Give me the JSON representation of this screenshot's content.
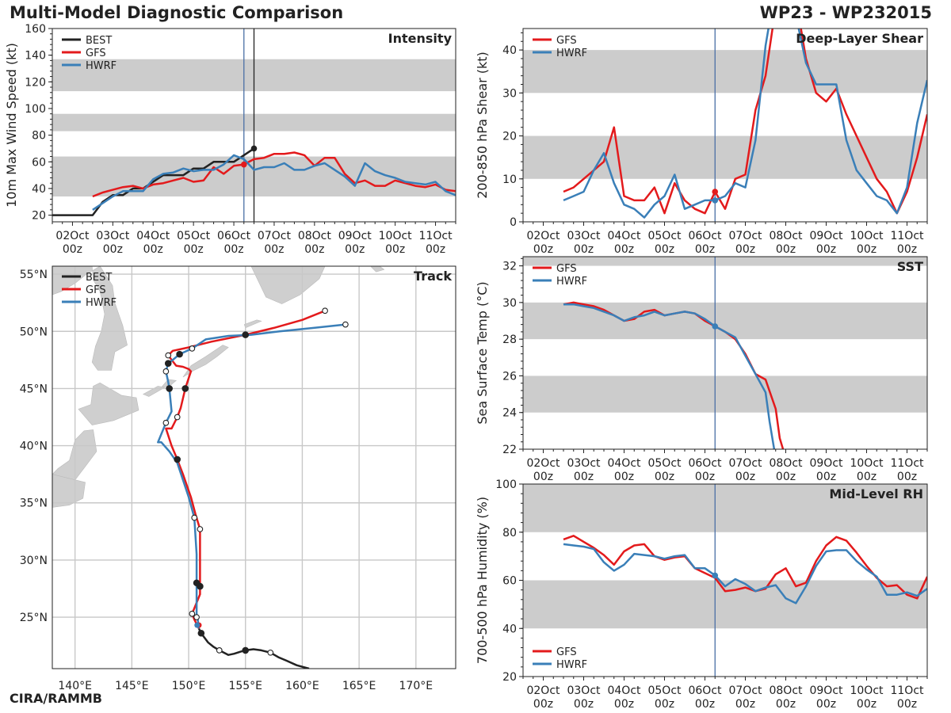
{
  "header": {
    "title": "Multi-Model Diagnostic Comparison",
    "storm": "WP23 - WP232015"
  },
  "footer": {
    "credit": "CIRA/RAMMB"
  },
  "colors": {
    "best": "#222222",
    "gfs": "#e31a1c",
    "hwrf": "#3a7fb8",
    "band": "#cccccc",
    "grid": "#c8c8c8",
    "land": "#cfcfcf"
  },
  "time_axis": {
    "labels": [
      "02Oct\n00z",
      "03Oct\n00z",
      "04Oct\n00z",
      "05Oct\n00z",
      "06Oct\n00z",
      "07Oct\n00z",
      "08Oct\n00z",
      "09Oct\n00z",
      "10Oct\n00z",
      "11Oct\n00z"
    ],
    "range_days": [
      1.5,
      11.5
    ],
    "current_day": 6.25
  },
  "chart_data": [
    {
      "id": "intensity",
      "type": "line",
      "title": "Intensity",
      "ylabel": "10m Max Wind Speed (kt)",
      "ylim": [
        15,
        160
      ],
      "yticks": [
        20,
        40,
        60,
        80,
        100,
        120,
        140,
        160
      ],
      "bands": [
        [
          34,
          64
        ],
        [
          83,
          96
        ],
        [
          113,
          137
        ]
      ],
      "vlines": [
        6.25,
        6.5
      ],
      "current_series": "gfs",
      "legend": [
        "BEST",
        "GFS",
        "HWRF"
      ],
      "series": [
        {
          "name": "BEST",
          "key": "best",
          "x": [
            1.5,
            1.75,
            2.0,
            2.25,
            2.5,
            2.75,
            3.0,
            3.25,
            3.5,
            3.75,
            4.0,
            4.25,
            4.5,
            4.75,
            5.0,
            5.25,
            5.5,
            5.75,
            6.0,
            6.25,
            6.5
          ],
          "y": [
            20,
            20,
            20,
            20,
            20,
            30,
            35,
            35,
            40,
            40,
            45,
            50,
            50,
            50,
            55,
            55,
            60,
            60,
            60,
            65,
            70
          ]
        },
        {
          "name": "GFS",
          "key": "gfs",
          "x": [
            2.5,
            2.75,
            3.0,
            3.25,
            3.5,
            3.75,
            4.0,
            4.25,
            4.5,
            4.75,
            5.0,
            5.25,
            5.5,
            5.75,
            6.0,
            6.25,
            6.5,
            6.75,
            7.0,
            7.25,
            7.5,
            7.75,
            8.0,
            8.25,
            8.5,
            8.75,
            9.0,
            9.25,
            9.5,
            9.75,
            10.0,
            10.25,
            10.5,
            10.75,
            11.0,
            11.25,
            11.5
          ],
          "y": [
            34,
            37,
            39,
            41,
            42,
            40,
            43,
            44,
            46,
            48,
            45,
            46,
            56,
            51,
            57,
            58,
            62,
            63,
            66,
            66,
            67,
            65,
            57,
            63,
            63,
            51,
            44,
            46,
            42,
            42,
            46,
            44,
            42,
            41,
            43,
            39,
            38
          ]
        },
        {
          "name": "HWRF",
          "key": "hwrf",
          "x": [
            2.5,
            2.75,
            3.0,
            3.25,
            3.5,
            3.75,
            4.0,
            4.25,
            4.5,
            4.75,
            5.0,
            5.25,
            5.5,
            5.75,
            6.0,
            6.25,
            6.5,
            6.75,
            7.0,
            7.25,
            7.5,
            7.75,
            8.0,
            8.25,
            8.5,
            8.75,
            9.0,
            9.25,
            9.5,
            9.75,
            10.0,
            10.25,
            10.5,
            10.75,
            11.0,
            11.25,
            11.5
          ],
          "y": [
            24,
            29,
            34,
            38,
            38,
            38,
            47,
            51,
            52,
            55,
            53,
            54,
            54,
            58,
            65,
            62,
            54,
            56,
            56,
            59,
            54,
            54,
            57,
            59,
            54,
            49,
            42,
            59,
            53,
            50,
            48,
            45,
            44,
            43,
            45,
            38,
            35
          ]
        }
      ]
    },
    {
      "id": "shear",
      "type": "line",
      "title": "Deep-Layer Shear",
      "ylabel": "200-850 hPa Shear (kt)",
      "ylim": [
        0,
        45
      ],
      "yticks": [
        0,
        10,
        20,
        30,
        40
      ],
      "bands": [
        [
          10,
          20
        ],
        [
          30,
          40
        ]
      ],
      "vlines": [
        6.25
      ],
      "current_series": "both",
      "legend": [
        "GFS",
        "HWRF"
      ],
      "series": [
        {
          "name": "GFS",
          "key": "gfs",
          "x": [
            2.5,
            2.75,
            3.0,
            3.25,
            3.5,
            3.75,
            4.0,
            4.25,
            4.5,
            4.75,
            5.0,
            5.25,
            5.5,
            5.75,
            6.0,
            6.25,
            6.5,
            6.75,
            7.0,
            7.25,
            7.5,
            7.75,
            8.0,
            8.25,
            8.5,
            8.75,
            9.0,
            9.25,
            9.5,
            9.75,
            10.0,
            10.25,
            10.5,
            10.75,
            11.0,
            11.25,
            11.5
          ],
          "y": [
            7,
            8,
            10,
            12,
            14,
            22,
            6,
            5,
            5,
            8,
            2,
            9,
            5,
            3,
            2,
            7,
            3,
            10,
            11,
            26,
            34,
            50,
            55,
            52,
            38,
            30,
            28,
            31,
            25,
            20,
            15,
            10,
            7,
            2,
            7,
            15,
            25
          ]
        },
        {
          "name": "HWRF",
          "key": "hwrf",
          "x": [
            2.5,
            2.75,
            3.0,
            3.25,
            3.5,
            3.75,
            4.0,
            4.25,
            4.5,
            4.75,
            5.0,
            5.25,
            5.5,
            5.75,
            6.0,
            6.25,
            6.5,
            6.75,
            7.0,
            7.25,
            7.5,
            7.75,
            8.0,
            8.25,
            8.5,
            8.75,
            9.0,
            9.25,
            9.5,
            9.75,
            10.0,
            10.25,
            10.5,
            10.75,
            11.0,
            11.25,
            11.5
          ],
          "y": [
            5,
            6,
            7,
            12,
            16,
            9,
            4,
            3,
            1,
            4,
            6,
            11,
            3,
            4,
            5,
            5,
            6,
            9,
            8,
            19,
            41,
            55,
            52,
            48,
            37,
            32,
            32,
            32,
            19,
            12,
            9,
            6,
            5,
            2,
            8,
            23,
            33
          ]
        }
      ]
    },
    {
      "id": "sst",
      "type": "line",
      "title": "SST",
      "ylabel": "Sea Surface Temp (°C)",
      "ylim": [
        22,
        32.5
      ],
      "yticks": [
        22,
        24,
        26,
        28,
        30,
        32
      ],
      "bands": [
        [
          24,
          26
        ],
        [
          28,
          30
        ],
        [
          32,
          34
        ]
      ],
      "vlines": [
        6.25
      ],
      "current_series": "hwrf",
      "legend": [
        "GFS",
        "HWRF"
      ],
      "series": [
        {
          "name": "GFS",
          "key": "gfs",
          "x": [
            2.5,
            2.75,
            3.0,
            3.25,
            3.5,
            3.75,
            4.0,
            4.25,
            4.5,
            4.75,
            5.0,
            5.25,
            5.5,
            5.75,
            6.0,
            6.25,
            6.5,
            6.75,
            7.0,
            7.25,
            7.5,
            7.75,
            7.85,
            8.0
          ],
          "y": [
            29.9,
            30.0,
            29.9,
            29.8,
            29.6,
            29.3,
            29.0,
            29.1,
            29.5,
            29.6,
            29.3,
            29.4,
            29.5,
            29.4,
            29.0,
            28.7,
            28.4,
            28.0,
            27.2,
            26.1,
            25.8,
            24.2,
            22.6,
            21.5
          ]
        },
        {
          "name": "HWRF",
          "key": "hwrf",
          "x": [
            2.5,
            2.75,
            3.0,
            3.25,
            3.5,
            3.75,
            4.0,
            4.25,
            4.5,
            4.75,
            5.0,
            5.25,
            5.5,
            5.75,
            6.0,
            6.25,
            6.5,
            6.75,
            7.0,
            7.25,
            7.5,
            7.6,
            7.75
          ],
          "y": [
            29.9,
            29.9,
            29.8,
            29.7,
            29.5,
            29.3,
            29.0,
            29.2,
            29.3,
            29.5,
            29.3,
            29.4,
            29.5,
            29.4,
            29.1,
            28.7,
            28.4,
            28.1,
            27.1,
            26.1,
            25.1,
            23.5,
            21.5
          ]
        }
      ]
    },
    {
      "id": "rh",
      "type": "line",
      "title": "Mid-Level RH",
      "ylabel": "700-500 hPa Humidity (%)",
      "ylim": [
        20,
        100
      ],
      "yticks": [
        20,
        40,
        60,
        80,
        100
      ],
      "bands": [
        [
          40,
          60
        ],
        [
          80,
          100
        ]
      ],
      "vlines": [
        6.25
      ],
      "current_series": "hwrf",
      "legend": [
        "GFS",
        "HWRF"
      ],
      "legend_pos": "bottom-left",
      "series": [
        {
          "name": "GFS",
          "key": "gfs",
          "x": [
            2.5,
            2.75,
            3.0,
            3.25,
            3.5,
            3.75,
            4.0,
            4.25,
            4.5,
            4.75,
            5.0,
            5.25,
            5.5,
            5.75,
            6.0,
            6.25,
            6.5,
            6.75,
            7.0,
            7.25,
            7.5,
            7.75,
            8.0,
            8.25,
            8.5,
            8.75,
            9.0,
            9.25,
            9.5,
            9.75,
            10.0,
            10.25,
            10.5,
            10.75,
            11.0,
            11.25,
            11.5
          ],
          "y": [
            77,
            78.5,
            76,
            73.5,
            70.5,
            66.5,
            72,
            74.5,
            75,
            70,
            68.5,
            69.5,
            70,
            65,
            63,
            61,
            55.5,
            56,
            57,
            55.5,
            56.5,
            62.5,
            65,
            57.5,
            59,
            68,
            74.5,
            78,
            76.5,
            71.5,
            66,
            61,
            57.5,
            58,
            54,
            52.5,
            61.5
          ]
        },
        {
          "name": "HWRF",
          "key": "hwrf",
          "x": [
            2.5,
            2.75,
            3.0,
            3.25,
            3.5,
            3.75,
            4.0,
            4.25,
            4.5,
            4.75,
            5.0,
            5.25,
            5.5,
            5.75,
            6.0,
            6.25,
            6.5,
            6.75,
            7.0,
            7.25,
            7.5,
            7.75,
            8.0,
            8.25,
            8.5,
            8.75,
            9.0,
            9.25,
            9.5,
            9.75,
            10.0,
            10.25,
            10.5,
            10.75,
            11.0,
            11.25,
            11.5
          ],
          "y": [
            75,
            74.5,
            74,
            73,
            67.5,
            64,
            66.5,
            71,
            70.5,
            70,
            69,
            70,
            70.5,
            65,
            65,
            62,
            57.5,
            60.5,
            58.5,
            55.5,
            57,
            58,
            52.5,
            50.5,
            57.5,
            66,
            72,
            72.5,
            72.5,
            68,
            64.5,
            61.5,
            54,
            54,
            55,
            53.5,
            56.5
          ]
        }
      ]
    },
    {
      "id": "track",
      "type": "scatter",
      "title": "Track",
      "xlabel": "",
      "ylabel": "",
      "lon_range": [
        138,
        173.5
      ],
      "lat_range": [
        20.5,
        55.7
      ],
      "xticks": [
        140,
        145,
        150,
        155,
        160,
        165,
        170
      ],
      "xtick_labels": [
        "140°E",
        "145°E",
        "150°E",
        "155°E",
        "160°E",
        "165°E",
        "170°E"
      ],
      "yticks": [
        25,
        30,
        35,
        40,
        45,
        50,
        55
      ],
      "ytick_labels": [
        "25°N",
        "30°N",
        "35°N",
        "40°N",
        "45°N",
        "50°N",
        "55°N"
      ],
      "legend": [
        "BEST",
        "GFS",
        "HWRF"
      ],
      "series": [
        {
          "name": "BEST",
          "key": "best",
          "lon": [
            160.6,
            159.5,
            158.6,
            157.9,
            157.2,
            156.4,
            155.7,
            155.0,
            154.6,
            154.0,
            153.5,
            152.7,
            152.2,
            151.7,
            151.4,
            151.1,
            150.9
          ],
          "lat": [
            20.5,
            20.8,
            21.2,
            21.5,
            21.9,
            22.1,
            22.2,
            22.1,
            22.0,
            21.8,
            21.7,
            22.1,
            22.4,
            22.8,
            23.2,
            23.6,
            24.0
          ],
          "filled_idx": [
            7,
            15
          ],
          "open_idx": [
            4,
            11
          ]
        },
        {
          "name": "GFS",
          "key": "gfs",
          "lon": [
            150.9,
            150.5,
            150.3,
            151.0,
            151.0,
            151.0,
            151.0,
            150.6,
            150.2,
            149.5,
            149.0,
            148.5,
            148.0,
            148.5,
            149.0,
            149.3,
            149.7,
            150.2,
            150.0,
            149.5,
            148.9,
            148.2,
            148.6,
            150.0,
            152.0,
            155.0,
            157.5,
            160.0,
            162.0
          ],
          "lat": [
            24.0,
            24.8,
            25.3,
            27.0,
            27.7,
            30.0,
            32.7,
            34.0,
            35.5,
            37.5,
            38.8,
            40.0,
            41.5,
            41.5,
            42.5,
            43.3,
            45.0,
            46.5,
            46.7,
            46.9,
            47.0,
            47.9,
            48.3,
            48.6,
            49.1,
            49.7,
            50.3,
            51.0,
            51.8
          ],
          "filled_idx": [
            4,
            10,
            16,
            25
          ],
          "open_idx": [
            2,
            6,
            14,
            21,
            28
          ]
        },
        {
          "name": "HWRF",
          "key": "hwrf",
          "lon": [
            150.9,
            150.8,
            150.7,
            150.7,
            150.7,
            150.5,
            150.0,
            149.5,
            149.0,
            148.3,
            147.6,
            147.3,
            148.0,
            148.5,
            148.4,
            148.3,
            148.2,
            148.0,
            148.2,
            148.6,
            149.2,
            150.3,
            151.5,
            153.5,
            155.5,
            158.0,
            161.0,
            163.8
          ],
          "lat": [
            24.0,
            24.8,
            25.0,
            28.0,
            30.5,
            33.7,
            35.5,
            37.0,
            38.5,
            39.5,
            40.3,
            40.3,
            42.0,
            43.0,
            44.0,
            45.0,
            45.6,
            46.5,
            47.2,
            47.5,
            48.0,
            48.5,
            49.3,
            49.6,
            49.7,
            50.0,
            50.3,
            50.6
          ],
          "filled_idx": [
            3,
            15,
            18,
            20
          ],
          "open_idx": [
            2,
            5,
            12,
            17,
            21,
            27
          ]
        }
      ]
    }
  ]
}
